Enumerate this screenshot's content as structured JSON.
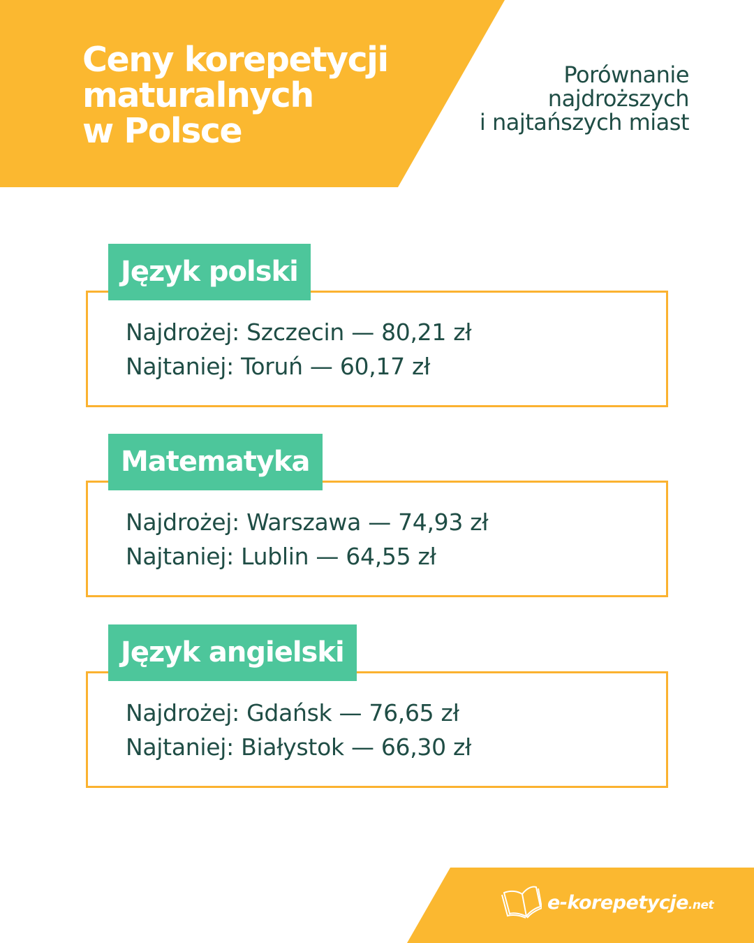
{
  "header": {
    "title_lines": [
      "Ceny korepetycji",
      "maturalnych",
      "w Polsce"
    ],
    "subtitle_lines": [
      "Porównanie",
      "najdroższych",
      "i najtańszych miast"
    ]
  },
  "colors": {
    "yellow": "#fbb830",
    "green": "#4dc69b",
    "text": "#1f4d45",
    "border": "#fbb230"
  },
  "sections": [
    {
      "subject": "Język polski",
      "most_expensive": "Najdrożej: Szczecin — 80,21 zł",
      "cheapest": "Najtaniej: Toruń — 60,17 zł"
    },
    {
      "subject": "Matematyka",
      "most_expensive": "Najdrożej: Warszawa — 74,93 zł",
      "cheapest": "Najtaniej: Lublin — 64,55 zł"
    },
    {
      "subject": "Język angielski",
      "most_expensive": "Najdrożej: Gdańsk — 76,65 zł",
      "cheapest": "Najtaniej: Białystok — 66,30 zł"
    }
  ],
  "footer": {
    "logo_text": "e-korepetycje",
    "logo_suffix": ".net",
    "logo_icon": "open-book-icon"
  }
}
